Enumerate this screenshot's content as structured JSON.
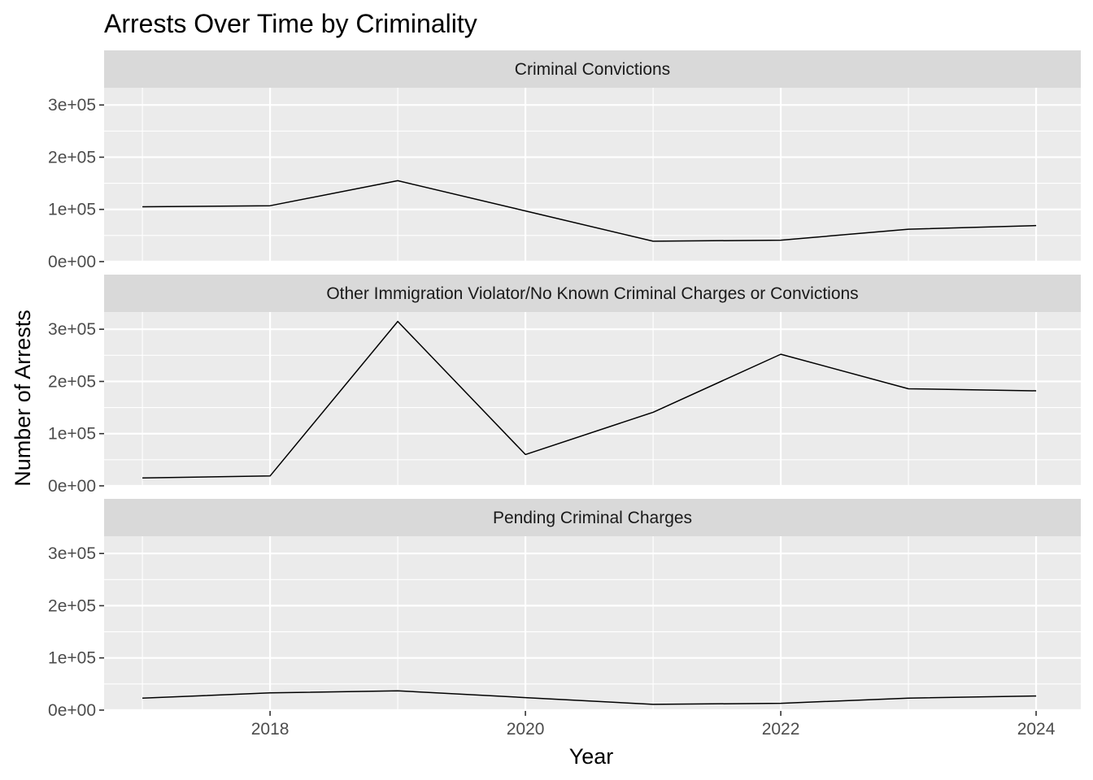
{
  "chart_data": {
    "type": "line",
    "title": "Arrests Over Time by Criminality",
    "xlabel": "Year",
    "ylabel": "Number of Arrests",
    "x": [
      2017,
      2018,
      2019,
      2020,
      2021,
      2022,
      2023,
      2024
    ],
    "x_ticks": [
      2018,
      2020,
      2022,
      2024
    ],
    "x_tick_labels": [
      "2018",
      "2020",
      "2022",
      "2024"
    ],
    "xlim": [
      2016.7,
      2024.35
    ],
    "y_ticks": [
      0,
      100000,
      200000,
      300000
    ],
    "y_tick_labels": [
      "0e+00",
      "1e+05",
      "2e+05",
      "3e+05"
    ],
    "ylim": [
      -1600,
      333000
    ],
    "grid": true,
    "line_color": "#000000",
    "panel_background": "#ebebeb",
    "strip_background": "#d9d9d9",
    "grid_color": "#ffffff",
    "panels": [
      {
        "strip": "Criminal Convictions",
        "values": [
          105000,
          107000,
          155000,
          97000,
          39000,
          41000,
          62000,
          69000
        ]
      },
      {
        "strip": "Other Immigration Violator/No Known Criminal Charges or Convictions",
        "values": [
          15000,
          19000,
          315000,
          60000,
          141000,
          252000,
          186000,
          182000
        ]
      },
      {
        "strip": "Pending Criminal Charges",
        "values": [
          23000,
          33000,
          37000,
          24000,
          11000,
          13000,
          23000,
          27000
        ]
      }
    ]
  }
}
